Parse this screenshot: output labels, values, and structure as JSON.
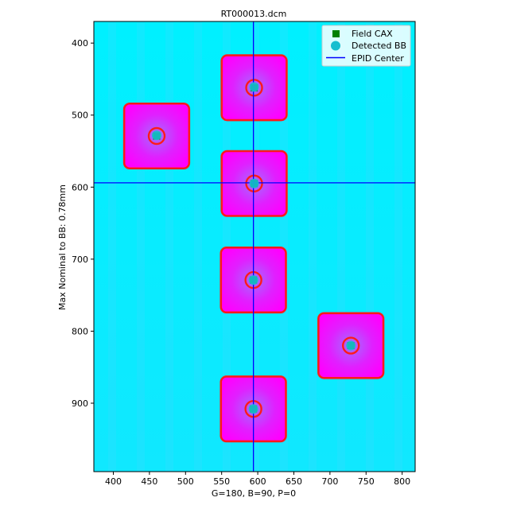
{
  "chart_data": {
    "type": "heatmap",
    "title": "RT000013.dcm",
    "xlabel": "G=180, B=90, P=0",
    "ylabel": "Max Nominal to BB: 0.78mm",
    "xlim": [
      373,
      818
    ],
    "ylim": [
      995,
      370
    ],
    "y_inverted": true,
    "x_ticks": [
      400,
      450,
      500,
      550,
      600,
      650,
      700,
      750,
      800
    ],
    "y_ticks": [
      400,
      500,
      600,
      700,
      800,
      900
    ],
    "grid": false,
    "legend": {
      "placement": "top-right",
      "entries": [
        {
          "label": "Field CAX",
          "marker": "square",
          "color": "#008000"
        },
        {
          "label": "Detected BB",
          "marker": "circle",
          "color": "#17becf"
        },
        {
          "label": "EPID Center",
          "marker": "line",
          "color": "#0000ff"
        }
      ]
    },
    "colors": {
      "background_field": "#00ffff",
      "field_fill": "#ff00ff",
      "field_contour": "#ff1a1a",
      "field_cax": "#008000",
      "detected_bb": "#17becf",
      "epid_center": "#0000ff"
    },
    "epid_center": {
      "x": 594,
      "y": 594
    },
    "fields": [
      {
        "x": 595,
        "y": 462,
        "size": 90
      },
      {
        "x": 460,
        "y": 529,
        "size": 90
      },
      {
        "x": 595,
        "y": 595,
        "size": 90
      },
      {
        "x": 594,
        "y": 729,
        "size": 90
      },
      {
        "x": 729,
        "y": 820,
        "size": 90
      },
      {
        "x": 594,
        "y": 908,
        "size": 90
      }
    ],
    "bbs": [
      {
        "x": 595,
        "y": 461
      },
      {
        "x": 460,
        "y": 528
      },
      {
        "x": 595,
        "y": 595
      },
      {
        "x": 594,
        "y": 729
      },
      {
        "x": 729,
        "y": 820
      },
      {
        "x": 594,
        "y": 908
      }
    ]
  }
}
